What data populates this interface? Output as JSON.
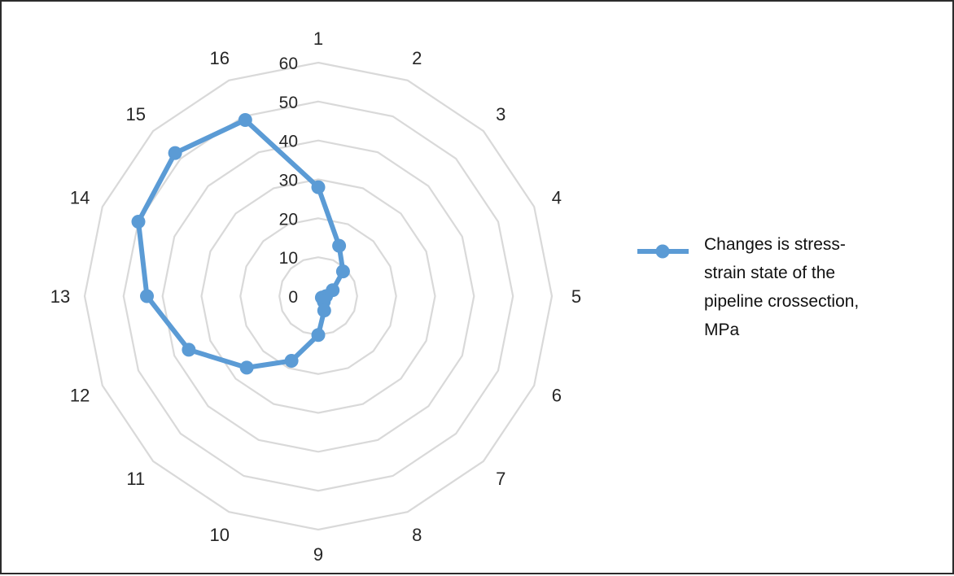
{
  "chart_data": {
    "type": "radar",
    "categories": [
      "1",
      "2",
      "3",
      "4",
      "5",
      "6",
      "7",
      "8",
      "9",
      "10",
      "11",
      "12",
      "13",
      "14",
      "15",
      "16"
    ],
    "series": [
      {
        "name": "Changes is stress-strain state of the pipeline crossection, MPa",
        "values": [
          28,
          14,
          9,
          4,
          2,
          1,
          2,
          4,
          10,
          18,
          26,
          36,
          44,
          50,
          52,
          49
        ],
        "color": "#5b9bd5"
      }
    ],
    "rlim": [
      0,
      60
    ],
    "ticks": [
      "0",
      "10",
      "20",
      "30",
      "40",
      "50",
      "60"
    ],
    "grid": true,
    "legend": {
      "position": "right",
      "lines": [
        "Changes is stress-",
        "strain state of the",
        "pipeline crossection,",
        "MPa"
      ]
    },
    "gridColor": "#d9d9d9"
  }
}
